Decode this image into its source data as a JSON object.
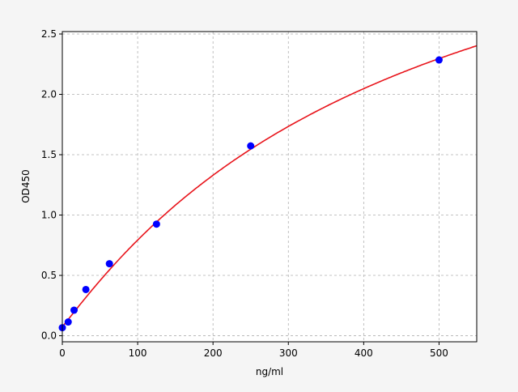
{
  "chart_data": {
    "type": "scatter",
    "title": "",
    "xlabel": "ng/ml",
    "ylabel": "OD450",
    "xlim": [
      0,
      550
    ],
    "ylim": [
      -0.05,
      2.52
    ],
    "xticks": [
      0,
      100,
      200,
      300,
      400,
      500
    ],
    "xtick_labels": [
      "0",
      "100",
      "200",
      "300",
      "400",
      "500"
    ],
    "yticks": [
      0.0,
      0.5,
      1.0,
      1.5,
      2.0,
      2.5
    ],
    "ytick_labels": [
      "0.0",
      "0.5",
      "1.0",
      "1.5",
      "2.0",
      "2.5"
    ],
    "grid": true,
    "points": {
      "x": [
        0,
        7.8,
        15.6,
        31.25,
        62.5,
        125,
        250,
        500
      ],
      "y": [
        0.067,
        0.114,
        0.212,
        0.383,
        0.597,
        0.925,
        1.573,
        2.285
      ],
      "color": "#0000ff"
    },
    "fit_curve": {
      "type": "standard curve fit",
      "color": "#e8141b"
    }
  }
}
